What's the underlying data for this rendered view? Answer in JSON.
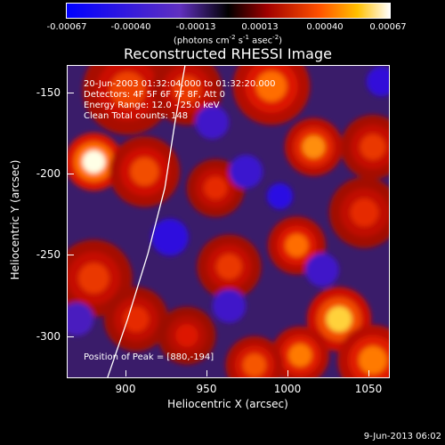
{
  "chart_data": {
    "type": "heatmap",
    "title": "Reconstructed RHESSI Image",
    "xlabel": "Heliocentric X (arcsec)",
    "ylabel": "Heliocentric Y (arcsec)",
    "xlim": [
      864,
      1055
    ],
    "ylim": [
      -326,
      -135
    ],
    "x_ticks": [
      900,
      950,
      1000,
      1050
    ],
    "y_ticks": [
      -150,
      -200,
      -250,
      -300
    ],
    "colorbar": {
      "ticks": [
        "-0.00067",
        "-0.00040",
        "-0.00013",
        "0.00013",
        "0.00040",
        "0.00067"
      ],
      "units": {
        "base": "(photons cm",
        "exp1": "-2",
        "mid1": " s",
        "exp2": "-1",
        "mid2": " asec",
        "exp3": "-2",
        "end": ")"
      },
      "range": [
        -0.00067,
        0.00067
      ]
    },
    "annotations": {
      "time": "20-Jun-2003 01:32:04.000 to 01:32:20.000",
      "detectors": "Detectors: 4F 5F 6F 7F 8F, Att 0",
      "energy": "Energy Range: 12.0 - 25.0 keV",
      "clean": "Clean    Total counts: 148",
      "peak": "Position of Peak = [880,-194]"
    },
    "limb_curve": [
      [
        888,
        -326
      ],
      [
        900,
        -290
      ],
      [
        912,
        -250
      ],
      [
        922,
        -210
      ],
      [
        928,
        -170
      ],
      [
        934,
        -135
      ]
    ],
    "sources": [
      {
        "x": 880,
        "y": -194,
        "v": 0.00067,
        "r": 9
      },
      {
        "x": 910,
        "y": -200,
        "v": 0.00034,
        "r": 11
      },
      {
        "x": 900,
        "y": -150,
        "v": 0.00032,
        "r": 14
      },
      {
        "x": 935,
        "y": -150,
        "v": 0.0003,
        "r": 11
      },
      {
        "x": 985,
        "y": -148,
        "v": 0.0004,
        "r": 12
      },
      {
        "x": 1010,
        "y": -185,
        "v": 0.00045,
        "r": 9
      },
      {
        "x": 1045,
        "y": -185,
        "v": 0.0003,
        "r": 10
      },
      {
        "x": 1040,
        "y": -225,
        "v": 0.00028,
        "r": 11
      },
      {
        "x": 1000,
        "y": -245,
        "v": 0.0004,
        "r": 9
      },
      {
        "x": 952,
        "y": -210,
        "v": 0.00028,
        "r": 9
      },
      {
        "x": 960,
        "y": -258,
        "v": 0.0003,
        "r": 10
      },
      {
        "x": 1025,
        "y": -290,
        "v": 0.00056,
        "r": 10
      },
      {
        "x": 1045,
        "y": -315,
        "v": 0.00042,
        "r": 11
      },
      {
        "x": 1002,
        "y": -312,
        "v": 0.00042,
        "r": 9
      },
      {
        "x": 975,
        "y": -318,
        "v": 0.00036,
        "r": 9
      },
      {
        "x": 880,
        "y": -265,
        "v": 0.0003,
        "r": 12
      },
      {
        "x": 905,
        "y": -290,
        "v": 0.00028,
        "r": 10
      },
      {
        "x": 935,
        "y": -300,
        "v": 0.00024,
        "r": 9
      },
      {
        "x": 925,
        "y": -240,
        "v": -0.0005,
        "r": 10
      },
      {
        "x": 970,
        "y": -200,
        "v": -0.00035,
        "r": 9
      },
      {
        "x": 990,
        "y": -215,
        "v": -0.00055,
        "r": 7
      },
      {
        "x": 1050,
        "y": -145,
        "v": -0.00045,
        "r": 8
      },
      {
        "x": 1015,
        "y": -260,
        "v": -0.0003,
        "r": 9
      },
      {
        "x": 960,
        "y": -282,
        "v": -0.0003,
        "r": 9
      },
      {
        "x": 950,
        "y": -170,
        "v": -0.0003,
        "r": 9
      },
      {
        "x": 870,
        "y": -290,
        "v": -0.0002,
        "r": 9
      }
    ]
  },
  "footer": {
    "date_stamp": "9-Jun-2013 06:02"
  }
}
